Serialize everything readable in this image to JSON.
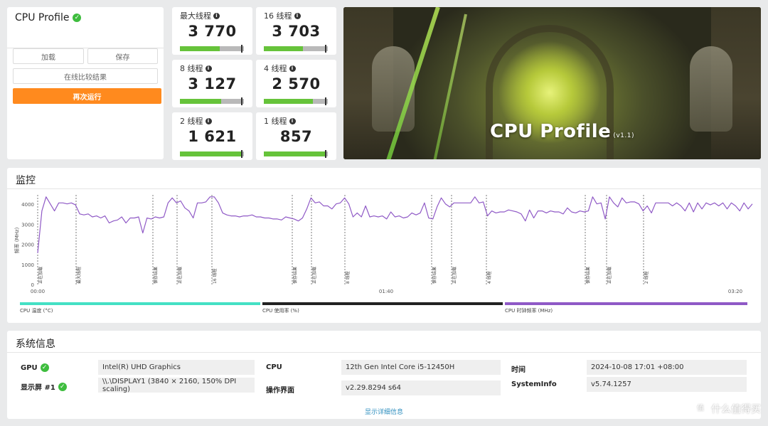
{
  "profile": {
    "title": "CPU Profile",
    "load_label": "加载",
    "save_label": "保存",
    "compare_label": "在线比较结果",
    "rerun_label": "再次运行"
  },
  "scores": [
    {
      "label": "最大线程",
      "value": "3 770",
      "fill": 0.62
    },
    {
      "label": "16 线程",
      "value": "3 703",
      "fill": 0.61
    },
    {
      "label": "8 线程",
      "value": "3 127",
      "fill": 0.64
    },
    {
      "label": "4 线程",
      "value": "2 570",
      "fill": 0.77
    },
    {
      "label": "2 线程",
      "value": "1 621",
      "fill": 0.95
    },
    {
      "label": "1 线程",
      "value": "857",
      "fill": 0.97
    }
  ],
  "hero": {
    "title": "CPU Profile",
    "version": "(v1.1)"
  },
  "monitor": {
    "title": "监控",
    "legend": [
      "CPU 温度 (°C)",
      "CPU 使用率 (%)",
      "CPU 时钟频率 (MHz)"
    ],
    "legend_colors": [
      "#44e0c4",
      "#222222",
      "#8f59c6"
    ]
  },
  "chart_data": {
    "type": "line",
    "ylabel": "频率 (MHz)",
    "ylim": [
      0,
      4500
    ],
    "yticks": [
      "0",
      "1000",
      "2000",
      "3000",
      "4000"
    ],
    "xticks": [
      "00:00",
      "01:40",
      "03:20"
    ],
    "line_color": "#8f59c6",
    "phases": [
      "正在加载",
      "最大线程",
      "保存结果",
      "正在加载",
      "16 线程",
      "保存结果",
      "正在加载",
      "8 线程",
      "保存结果",
      "正在加载",
      "4 线程",
      "保存结果",
      "正在加载",
      "2 线程"
    ],
    "series": [
      {
        "values": [
          1600,
          3700,
          4400,
          4050,
          3700,
          4100,
          4100,
          4050,
          4100,
          4000,
          3550,
          3500,
          3550,
          3400,
          3450,
          3350,
          3450,
          3100,
          3200,
          3250,
          3400,
          3100,
          3350,
          3350,
          3400,
          2600,
          3350,
          3300,
          3400,
          3350,
          3400,
          4100,
          4350,
          4100,
          4200,
          3850,
          3700,
          3350,
          4100,
          4100,
          4150,
          4400,
          4400,
          4100,
          3600,
          3500,
          3450,
          3450,
          3400,
          3450,
          3450,
          3500,
          3400,
          3400,
          3350,
          3350,
          3300,
          3300,
          3250,
          3400,
          3350,
          3300,
          3200,
          3350,
          3800,
          4350,
          4100,
          4150,
          3950,
          3950,
          3800,
          4050,
          4100,
          4350,
          4050,
          3400,
          3600,
          3400,
          3950,
          3400,
          3450,
          3400,
          3450,
          3300,
          3650,
          3400,
          3450,
          3350,
          3400,
          3600,
          3500,
          3600,
          4100,
          3350,
          3300,
          3900,
          4350,
          4050,
          3900,
          4100,
          4100,
          4100,
          4100,
          4100,
          4400,
          4100,
          4150,
          3450,
          3700,
          3600,
          3650,
          3650,
          3750,
          3700,
          3650,
          3550,
          3200,
          3750,
          3350,
          3700,
          3700,
          3600,
          3700,
          3650,
          3650,
          3550,
          3850,
          3650,
          3600,
          3700,
          3650,
          3700,
          4400,
          4050,
          4100,
          3300,
          4400,
          4100,
          3900,
          4350,
          4100,
          4150,
          4150,
          4050,
          3700,
          3950,
          3600,
          4100,
          4100,
          4100,
          4100,
          3950,
          4100,
          3950,
          3700,
          4100,
          3650,
          4100,
          3800,
          4100,
          4000,
          4100,
          3950,
          4100,
          3800,
          4100,
          3950,
          3700,
          4100,
          3800,
          4050
        ]
      }
    ]
  },
  "sysinfo": {
    "title": "系统信息",
    "gpu_key": "GPU",
    "gpu_val": "Intel(R) UHD Graphics",
    "display_key": "显示屏 #1",
    "display_val": "\\\\.\\DISPLAY1 (3840 × 2160, 150% DPI scaling)",
    "cpu_key": "CPU",
    "cpu_val": "12th Gen Intel Core i5-12450H",
    "ui_key": "操作界面",
    "ui_val": "v2.29.8294 s64",
    "time_key": "时间",
    "time_val": "2024-10-08 17:01 +08:00",
    "si_key": "SystemInfo",
    "si_val": "v5.74.1257",
    "more_label": "显示详细信息"
  },
  "watermark": {
    "text": "什么值得买",
    "logo": "值"
  }
}
